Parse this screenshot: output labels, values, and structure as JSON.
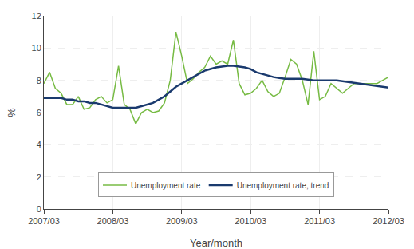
{
  "chart_data": {
    "type": "line",
    "xlabel": "Year/month",
    "ylabel": "%",
    "categories": [
      "2007/03",
      null,
      null,
      null,
      null,
      null,
      null,
      null,
      null,
      null,
      null,
      null,
      "2008/03",
      null,
      null,
      null,
      null,
      null,
      null,
      null,
      null,
      null,
      null,
      null,
      "2009/03",
      null,
      null,
      null,
      null,
      null,
      null,
      null,
      null,
      null,
      null,
      null,
      "2010/03",
      null,
      null,
      null,
      null,
      null,
      null,
      null,
      null,
      null,
      null,
      null,
      "2011/03",
      null,
      null,
      null,
      null,
      null,
      null,
      null,
      null,
      null,
      null,
      null,
      "2012/03"
    ],
    "series": [
      {
        "name": "Unemployment rate",
        "color": "#77bb44",
        "values": [
          7.8,
          8.5,
          7.5,
          7.2,
          6.5,
          6.5,
          7.0,
          6.2,
          6.3,
          6.8,
          7.0,
          6.6,
          6.8,
          8.9,
          6.5,
          6.2,
          5.3,
          6.0,
          6.2,
          6.0,
          6.1,
          6.6,
          8.0,
          11.0,
          9.5,
          7.8,
          8.1,
          8.5,
          8.8,
          9.5,
          9.0,
          9.2,
          9.0,
          10.5,
          7.8,
          7.1,
          7.2,
          7.5,
          8.0,
          7.3,
          7.0,
          7.2,
          8.2,
          9.3,
          9.0,
          8.0,
          6.5,
          9.8,
          6.8,
          7.0,
          7.8,
          7.5,
          7.2,
          7.5,
          7.8,
          7.8,
          7.8,
          7.8,
          7.8,
          8.0,
          8.2
        ]
      },
      {
        "name": "Unemployment rate, trend",
        "color": "#1a3a6e",
        "values": [
          6.9,
          6.9,
          6.9,
          6.9,
          6.8,
          6.8,
          6.7,
          6.7,
          6.6,
          6.6,
          6.5,
          6.4,
          6.3,
          6.3,
          6.3,
          6.3,
          6.3,
          6.4,
          6.5,
          6.6,
          6.8,
          7.0,
          7.3,
          7.6,
          7.8,
          8.0,
          8.2,
          8.4,
          8.6,
          8.7,
          8.8,
          8.85,
          8.9,
          8.9,
          8.85,
          8.8,
          8.7,
          8.5,
          8.4,
          8.3,
          8.2,
          8.15,
          8.1,
          8.1,
          8.1,
          8.1,
          8.05,
          8.0,
          8.0,
          8.0,
          8.0,
          8.0,
          7.95,
          7.9,
          7.85,
          7.8,
          7.75,
          7.7,
          7.65,
          7.6,
          7.55
        ]
      }
    ],
    "ylim": [
      0,
      12
    ],
    "yticks": [
      0,
      2,
      4,
      6,
      8,
      10,
      12
    ],
    "grid": true,
    "legend": "bottom"
  }
}
